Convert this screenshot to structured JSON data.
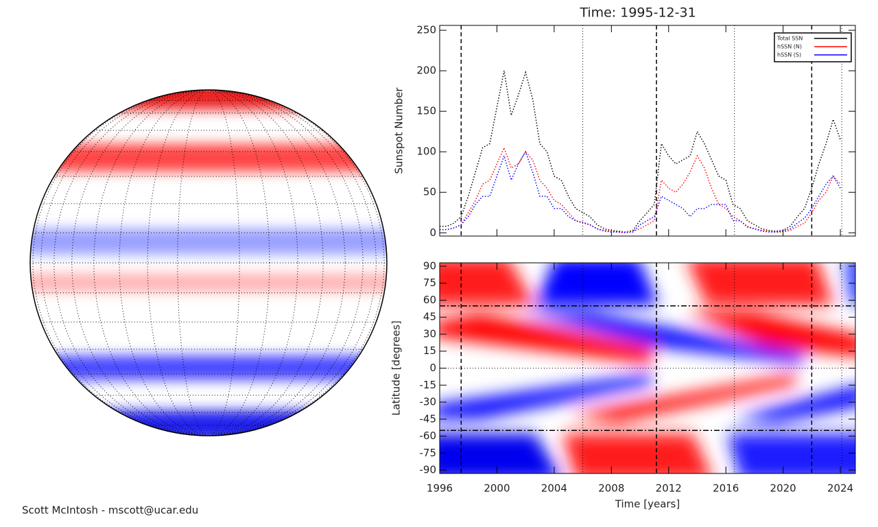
{
  "title": "Time: 1995-12-31",
  "credit": "Scott McIntosh - mscott@ucar.edu",
  "chart_data": [
    {
      "type": "line",
      "ylabel": "Sunspot Number",
      "xlim": [
        1996,
        2025.05
      ],
      "xticks": [
        1996,
        2000,
        2004,
        2008,
        2012,
        2016,
        2020,
        2024
      ],
      "ylim": [
        -4,
        256
      ],
      "yticks": [
        0,
        50,
        100,
        150,
        200,
        250
      ],
      "vlines_dashed": [
        1997.5,
        2011.15,
        2022.0
      ],
      "vlines_dotted": [
        2006.0,
        2016.6,
        2024.1
      ],
      "legend": "upper right",
      "x": [
        1996.0,
        1996.5,
        1997.0,
        1997.5,
        1998.0,
        1998.5,
        1999.0,
        1999.5,
        2000.0,
        2000.5,
        2001.0,
        2001.5,
        2002.0,
        2002.5,
        2003.0,
        2003.5,
        2004.0,
        2004.5,
        2005.0,
        2005.5,
        2006.0,
        2006.5,
        2007.0,
        2007.5,
        2008.0,
        2008.5,
        2009.0,
        2009.5,
        2010.0,
        2010.5,
        2011.0,
        2011.5,
        2012.0,
        2012.5,
        2013.0,
        2013.5,
        2014.0,
        2014.5,
        2015.0,
        2015.5,
        2016.0,
        2016.5,
        2017.0,
        2017.5,
        2018.0,
        2018.5,
        2019.0,
        2019.5,
        2020.0,
        2020.5,
        2021.0,
        2021.5,
        2022.0,
        2022.5,
        2023.0,
        2023.5,
        2024.0
      ],
      "series": [
        {
          "name": "Total SSN",
          "color": "#000000",
          "values": [
            8,
            8,
            12,
            20,
            45,
            75,
            105,
            110,
            155,
            200,
            145,
            170,
            198,
            165,
            110,
            100,
            70,
            65,
            45,
            30,
            25,
            20,
            10,
            5,
            3,
            2,
            1,
            3,
            15,
            25,
            35,
            110,
            95,
            85,
            90,
            95,
            125,
            110,
            90,
            70,
            65,
            35,
            30,
            15,
            10,
            5,
            3,
            2,
            3,
            8,
            20,
            30,
            55,
            85,
            110,
            140,
            115
          ]
        },
        {
          "name": "hSSN (N)",
          "color": "#ff0000",
          "values": [
            4,
            4,
            6,
            10,
            25,
            40,
            60,
            65,
            85,
            105,
            80,
            85,
            100,
            90,
            65,
            55,
            40,
            35,
            25,
            15,
            12,
            10,
            5,
            3,
            2,
            1,
            1,
            2,
            5,
            10,
            15,
            65,
            55,
            50,
            60,
            75,
            95,
            80,
            55,
            35,
            30,
            20,
            15,
            8,
            5,
            3,
            2,
            1,
            1,
            3,
            8,
            12,
            25,
            40,
            50,
            70,
            60
          ]
        },
        {
          "name": "hSSN (S)",
          "color": "#0000ff",
          "values": [
            4,
            4,
            6,
            10,
            20,
            35,
            45,
            45,
            70,
            95,
            65,
            85,
            100,
            75,
            45,
            45,
            30,
            30,
            20,
            15,
            13,
            10,
            5,
            2,
            1,
            1,
            0,
            1,
            10,
            15,
            20,
            45,
            40,
            35,
            30,
            20,
            30,
            30,
            35,
            35,
            35,
            15,
            15,
            7,
            5,
            2,
            1,
            1,
            2,
            5,
            12,
            18,
            30,
            45,
            60,
            70,
            55
          ]
        }
      ]
    },
    {
      "type": "heatmap",
      "xlabel": "Time [years]",
      "ylabel": "Latitude [degrees]",
      "xlim": [
        1996,
        2025.05
      ],
      "xticks": [
        1996,
        2000,
        2004,
        2008,
        2012,
        2016,
        2020,
        2024
      ],
      "ylim": [
        -93,
        93
      ],
      "yticks": [
        -90,
        -75,
        -60,
        -45,
        -30,
        -15,
        0,
        15,
        30,
        45,
        60,
        75,
        90
      ],
      "vlines_dashed": [
        1997.5,
        2011.15,
        2022.0
      ],
      "vlines_dotted": [
        2006.0,
        2016.6,
        2024.1
      ],
      "hlines_dashdot": [
        55,
        -55
      ],
      "hlines_dotted": [
        0
      ]
    }
  ]
}
